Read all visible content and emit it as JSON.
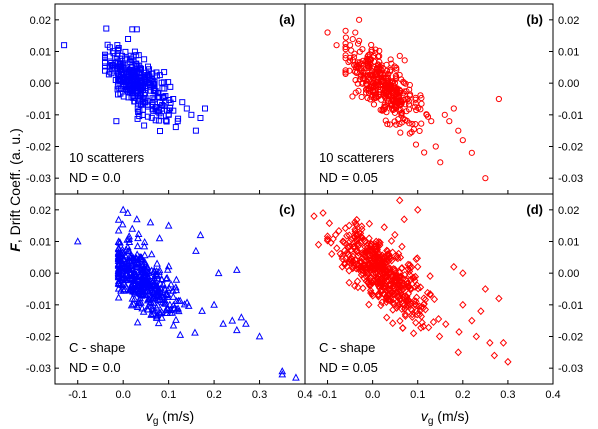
{
  "figure": {
    "ylabel_bold": "F",
    "ylabel_rest": ", Drift Coeff. (a. u.)",
    "xlabel_main": "v",
    "xlabel_sub": "g",
    "xlabel_unit": " (m/s)"
  },
  "chart_data": [
    {
      "type": "scatter",
      "panel": "(a)",
      "annotation_line1": "10 scatterers",
      "annotation_line2": "ND = 0.0",
      "marker": "square",
      "color": "#0000ff",
      "xlim": [
        -0.15,
        0.4
      ],
      "ylim": [
        -0.035,
        0.025
      ],
      "yticks": [
        "0.02",
        "0.01",
        "0.00",
        "-0.01",
        "-0.02",
        "-0.03"
      ],
      "xticks": [],
      "y_axis_side": "left",
      "generated": {
        "n": 320,
        "x_center": 0.03,
        "x_spread": 0.035,
        "slope": -0.09,
        "intercept": 0.003,
        "noise": 0.004,
        "xmin": -0.04,
        "xmax": 0.16
      },
      "outliers": [
        [
          -0.13,
          0.012
        ],
        [
          0.02,
          0.017
        ],
        [
          0.03,
          0.017
        ],
        [
          0.18,
          -0.008
        ],
        [
          0.17,
          -0.011
        ],
        [
          0.16,
          -0.015
        ],
        [
          0.15,
          -0.01
        ],
        [
          0.13,
          -0.006
        ],
        [
          0.12,
          -0.012
        ],
        [
          0.14,
          -0.008
        ],
        [
          -0.015,
          -0.012
        ],
        [
          0.0,
          0.005
        ],
        [
          0.1,
          -0.01
        ],
        [
          0.11,
          -0.005
        ]
      ]
    },
    {
      "type": "scatter",
      "panel": "(b)",
      "annotation_line1": "10 scatterers",
      "annotation_line2": "ND = 0.05",
      "marker": "circle",
      "color": "#ff0000",
      "xlim": [
        -0.15,
        0.4
      ],
      "ylim": [
        -0.035,
        0.025
      ],
      "yticks": [
        "0.02",
        "0.01",
        "0.00",
        "-0.01",
        "-0.02",
        "-0.03"
      ],
      "xticks": [],
      "y_axis_side": "right",
      "generated": {
        "n": 380,
        "x_center": 0.02,
        "x_spread": 0.04,
        "slope": -0.11,
        "intercept": 0.002,
        "noise": 0.0045,
        "xmin": -0.06,
        "xmax": 0.15
      },
      "outliers": [
        [
          -0.1,
          0.016
        ],
        [
          -0.08,
          0.012
        ],
        [
          -0.05,
          0.012
        ],
        [
          -0.03,
          0.02
        ],
        [
          0.28,
          -0.005
        ],
        [
          0.25,
          -0.03
        ],
        [
          0.22,
          -0.022
        ],
        [
          0.2,
          -0.018
        ],
        [
          0.19,
          -0.015
        ],
        [
          0.17,
          -0.012
        ],
        [
          0.16,
          -0.01
        ],
        [
          0.15,
          -0.025
        ],
        [
          0.18,
          -0.008
        ],
        [
          0.12,
          -0.01
        ],
        [
          0.13,
          -0.012
        ],
        [
          0.14,
          -0.02
        ]
      ]
    },
    {
      "type": "scatter",
      "panel": "(c)",
      "annotation_line1": "C - shape",
      "annotation_line2": "ND = 0.0",
      "marker": "triangle",
      "color": "#0000ff",
      "xlim": [
        -0.15,
        0.4
      ],
      "ylim": [
        -0.035,
        0.025
      ],
      "yticks": [
        "0.02",
        "0.01",
        "0.00",
        "-0.01",
        "-0.02",
        "-0.03"
      ],
      "xticks": [
        "-0.1",
        "0.0",
        "0.1",
        "0.2",
        "0.3",
        "0.4"
      ],
      "y_axis_side": "left",
      "generated": {
        "n": 420,
        "x_center": 0.04,
        "x_spread": 0.04,
        "slope": -0.11,
        "intercept": 0.002,
        "noise": 0.0045,
        "xmin": -0.01,
        "xmax": 0.22
      },
      "outliers": [
        [
          -0.1,
          0.01
        ],
        [
          0.0,
          0.02
        ],
        [
          0.01,
          0.019
        ],
        [
          0.02,
          0.014
        ],
        [
          0.03,
          0.017
        ],
        [
          0.06,
          0.016
        ],
        [
          0.08,
          0.011
        ],
        [
          0.1,
          0.015
        ],
        [
          0.17,
          0.012
        ],
        [
          0.16,
          0.007
        ],
        [
          0.21,
          0.0
        ],
        [
          0.25,
          0.001
        ],
        [
          0.24,
          -0.015
        ],
        [
          0.26,
          -0.014
        ],
        [
          0.27,
          -0.016
        ],
        [
          0.25,
          -0.018
        ],
        [
          0.3,
          -0.02
        ],
        [
          0.35,
          -0.031
        ],
        [
          0.38,
          -0.033
        ],
        [
          0.35,
          -0.032
        ],
        [
          0.2,
          -0.01
        ],
        [
          0.22,
          -0.016
        ]
      ]
    },
    {
      "type": "scatter",
      "panel": "(d)",
      "annotation_line1": "C - shape",
      "annotation_line2": "ND = 0.05",
      "marker": "diamond",
      "color": "#ff0000",
      "xlim": [
        -0.15,
        0.4
      ],
      "ylim": [
        -0.035,
        0.025
      ],
      "yticks": [
        "0.02",
        "0.01",
        "0.00",
        "-0.01",
        "-0.02",
        "-0.03"
      ],
      "xticks": [
        "-0.1",
        "0.0",
        "0.1",
        "0.2",
        "0.3",
        "0.4"
      ],
      "y_axis_side": "right",
      "generated": {
        "n": 520,
        "x_center": 0.02,
        "x_spread": 0.05,
        "slope": -0.1,
        "intercept": 0.002,
        "noise": 0.005,
        "xmin": -0.1,
        "xmax": 0.2
      },
      "outliers": [
        [
          -0.13,
          0.018
        ],
        [
          -0.11,
          0.019
        ],
        [
          -0.12,
          0.009
        ],
        [
          0.06,
          0.023
        ],
        [
          0.1,
          0.02
        ],
        [
          0.07,
          0.017
        ],
        [
          0.2,
          -0.01
        ],
        [
          0.22,
          -0.015
        ],
        [
          0.24,
          -0.012
        ],
        [
          0.26,
          -0.022
        ],
        [
          0.27,
          -0.026
        ],
        [
          0.29,
          -0.022
        ],
        [
          0.3,
          -0.028
        ],
        [
          0.28,
          -0.008
        ],
        [
          0.25,
          -0.005
        ],
        [
          0.23,
          -0.02
        ],
        [
          0.19,
          -0.025
        ],
        [
          0.2,
          0.0
        ],
        [
          0.18,
          0.002
        ],
        [
          -0.15,
          0.001
        ]
      ]
    }
  ]
}
